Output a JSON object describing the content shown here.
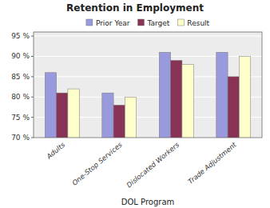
{
  "chart_data": {
    "type": "bar",
    "title": "Retention in Employment",
    "xlabel": "DOL Program",
    "categories": [
      "Adults",
      "One-Stop Services",
      "Dislocated Workers",
      "Trade Adjustment"
    ],
    "series": [
      {
        "name": "Prior Year",
        "values": [
          86,
          81,
          91,
          91
        ],
        "color": "#9999DD"
      },
      {
        "name": "Target",
        "values": [
          81,
          78,
          89,
          85
        ],
        "color": "#883355"
      },
      {
        "name": "Result",
        "values": [
          82,
          80,
          88,
          90
        ],
        "color": "#FFFFCC"
      }
    ],
    "ylim": [
      70,
      96
    ],
    "yticks": [
      {
        "value": 70,
        "label": "70 %"
      },
      {
        "value": 75,
        "label": "75 %"
      },
      {
        "value": 80,
        "label": "80 %"
      },
      {
        "value": 85,
        "label": "85 %"
      },
      {
        "value": 90,
        "label": "90 %"
      },
      {
        "value": 95,
        "label": "95 %"
      }
    ],
    "grid": true,
    "legend": "top"
  }
}
